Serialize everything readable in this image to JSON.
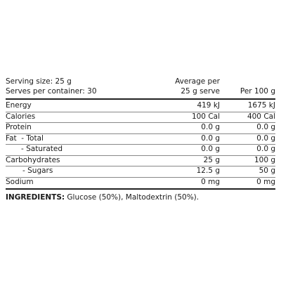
{
  "header": {
    "serving_size": "Serving size: 25 g",
    "serves_per_container": "Serves per container: 30",
    "column_1": [
      "Average per",
      "25 g serve"
    ],
    "column_2": "Per 100 g"
  },
  "table": {
    "rows": [
      [
        "Energy",
        "419 kJ",
        "1675 kJ"
      ],
      [
        "Calories",
        "100 Cal",
        "400 Cal"
      ],
      [
        "Protein",
        "0.0 g",
        "0.0 g"
      ],
      [
        "Fat  - Total",
        "0.0 g",
        "0.0 g"
      ],
      [
        "- Saturated",
        "0.0 g",
        "0.0 g"
      ],
      [
        "Carbohydrates",
        "25 g",
        "100 g"
      ],
      [
        "- Sugars",
        "12.5 g",
        "50 g"
      ],
      [
        "Sodium",
        "0 mg",
        "0 mg"
      ]
    ]
  },
  "ingredients": {
    "label": "INGREDIENTS:",
    "text": "Glucose (50%), Maltodextrin (50%)."
  }
}
